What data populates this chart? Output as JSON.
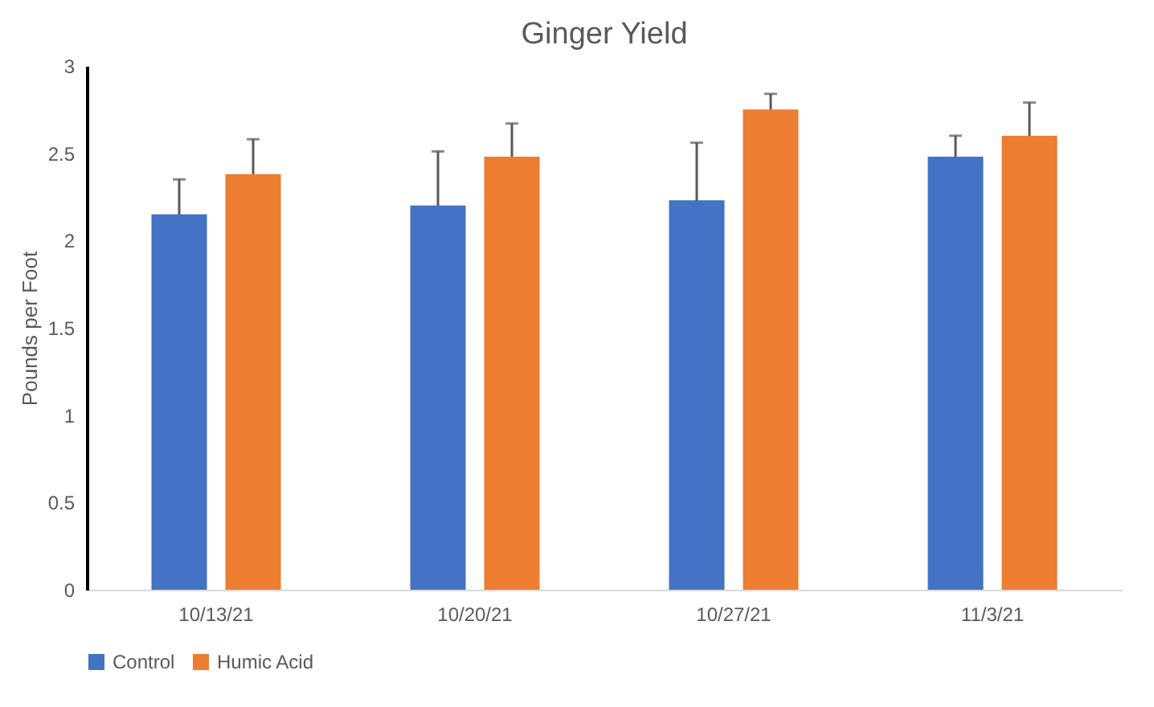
{
  "chart_data": {
    "type": "bar",
    "title": "Ginger Yield",
    "ylabel": "Pounds per Foot",
    "categories": [
      "10/13/21",
      "10/20/21",
      "10/27/21",
      "11/3/21"
    ],
    "series": [
      {
        "name": "Control",
        "color": "#4472c4",
        "values": [
          2.15,
          2.2,
          2.23,
          2.48
        ],
        "errors": [
          0.2,
          0.31,
          0.33,
          0.12
        ]
      },
      {
        "name": "Humic Acid",
        "color": "#ed7d31",
        "values": [
          2.38,
          2.48,
          2.75,
          2.6
        ],
        "errors": [
          0.2,
          0.19,
          0.09,
          0.19
        ]
      }
    ],
    "ylim": [
      0,
      3
    ],
    "yticks": [
      0,
      0.5,
      1,
      1.5,
      2,
      2.5,
      3
    ],
    "grid": false,
    "legend": "bottom"
  }
}
